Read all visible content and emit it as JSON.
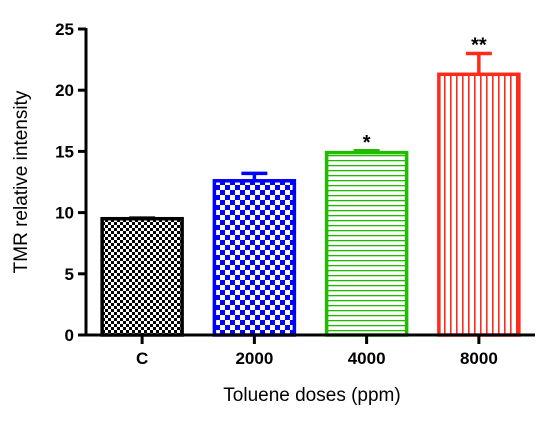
{
  "chart_data": {
    "type": "bar",
    "categories": [
      "C",
      "2000",
      "4000",
      "8000"
    ],
    "values": [
      9.5,
      12.6,
      14.9,
      21.3
    ],
    "errors": [
      0.05,
      0.6,
      0.15,
      1.7
    ],
    "significance": [
      "",
      "",
      "*",
      "**"
    ],
    "xlabel": "Toluene doses (ppm)",
    "ylabel": "TMR relative intensity",
    "ylim": [
      0,
      25
    ],
    "yticks": [
      0,
      5,
      10,
      15,
      20,
      25
    ],
    "grid": false,
    "bar_styles": [
      {
        "color": "#000000",
        "pattern": "fine-checkerboard"
      },
      {
        "color": "#0000ff",
        "pattern": "checkerboard"
      },
      {
        "color": "#22bb00",
        "pattern": "horizontal-lines"
      },
      {
        "color": "#ff2a1a",
        "pattern": "vertical-lines"
      }
    ]
  }
}
